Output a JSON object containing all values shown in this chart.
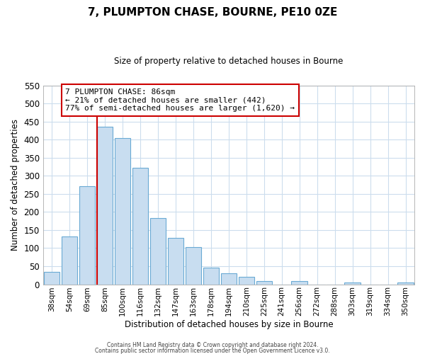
{
  "title": "7, PLUMPTON CHASE, BOURNE, PE10 0ZE",
  "subtitle": "Size of property relative to detached houses in Bourne",
  "xlabel": "Distribution of detached houses by size in Bourne",
  "ylabel": "Number of detached properties",
  "bar_labels": [
    "38sqm",
    "54sqm",
    "69sqm",
    "85sqm",
    "100sqm",
    "116sqm",
    "132sqm",
    "147sqm",
    "163sqm",
    "178sqm",
    "194sqm",
    "210sqm",
    "225sqm",
    "241sqm",
    "256sqm",
    "272sqm",
    "288sqm",
    "303sqm",
    "319sqm",
    "334sqm",
    "350sqm"
  ],
  "bar_values": [
    35,
    133,
    272,
    435,
    405,
    322,
    184,
    128,
    103,
    46,
    30,
    21,
    8,
    0,
    8,
    0,
    0,
    5,
    0,
    0,
    5
  ],
  "bar_color": "#c8ddf0",
  "bar_edge_color": "#6aaad4",
  "marker_index": 3,
  "marker_color": "#cc0000",
  "marker_label": "7 PLUMPTON CHASE: 86sqm",
  "annotation_line1": "← 21% of detached houses are smaller (442)",
  "annotation_line2": "77% of semi-detached houses are larger (1,620) →",
  "annotation_box_color": "#ffffff",
  "annotation_box_edge": "#cc0000",
  "ylim": [
    0,
    550
  ],
  "yticks": [
    0,
    50,
    100,
    150,
    200,
    250,
    300,
    350,
    400,
    450,
    500,
    550
  ],
  "footer_line1": "Contains HM Land Registry data © Crown copyright and database right 2024.",
  "footer_line2": "Contains public sector information licensed under the Open Government Licence v3.0.",
  "bg_color": "#ffffff",
  "grid_color": "#ccdded"
}
